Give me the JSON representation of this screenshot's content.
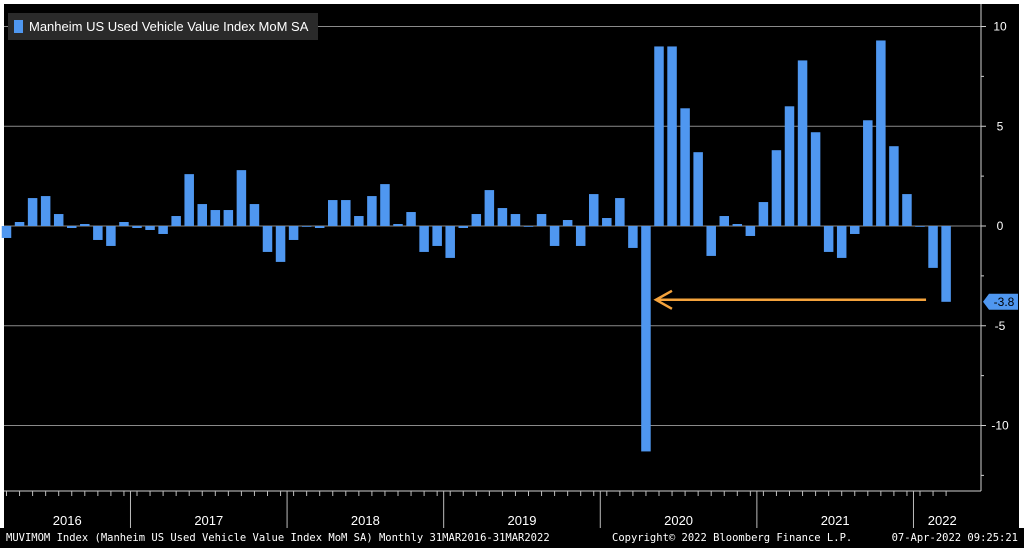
{
  "legend": {
    "label": "Manheim US Used Vehicle Value Index MoM SA",
    "color": "#4f97f0"
  },
  "footer": {
    "left": "MUVIMOM Index (Manheim US Used Vehicle Value Index MoM SA)  Monthly 31MAR2016-31MAR2022",
    "middle": "Copyright© 2022 Bloomberg Finance L.P.",
    "right": "07-Apr-2022 09:25:21"
  },
  "colors": {
    "background": "#000000",
    "bar": "#4f97f0",
    "grid": "#8a8a8a",
    "arrow": "#f5a33c",
    "text": "#ffffff"
  },
  "last_value_label": "-3.8",
  "chart_data": {
    "type": "bar",
    "title": "",
    "xlabel": "",
    "ylabel": "",
    "ylim": [
      -13,
      11
    ],
    "y_ticks": [
      10,
      5,
      0,
      -5,
      -10
    ],
    "y_tick_labels": [
      "10",
      "5",
      "0",
      "-5",
      "-10"
    ],
    "y_axis_position": "right",
    "grid": true,
    "legend_position": "top-left",
    "x_labels": [
      "2016",
      "2017",
      "2018",
      "2019",
      "2020",
      "2021",
      "2022"
    ],
    "x": [
      "2016-03",
      "2016-04",
      "2016-05",
      "2016-06",
      "2016-07",
      "2016-08",
      "2016-09",
      "2016-10",
      "2016-11",
      "2016-12",
      "2017-01",
      "2017-02",
      "2017-03",
      "2017-04",
      "2017-05",
      "2017-06",
      "2017-07",
      "2017-08",
      "2017-09",
      "2017-10",
      "2017-11",
      "2017-12",
      "2018-01",
      "2018-02",
      "2018-03",
      "2018-04",
      "2018-05",
      "2018-06",
      "2018-07",
      "2018-08",
      "2018-09",
      "2018-10",
      "2018-11",
      "2018-12",
      "2019-01",
      "2019-02",
      "2019-03",
      "2019-04",
      "2019-05",
      "2019-06",
      "2019-07",
      "2019-08",
      "2019-09",
      "2019-10",
      "2019-11",
      "2019-12",
      "2020-01",
      "2020-02",
      "2020-03",
      "2020-04",
      "2020-05",
      "2020-06",
      "2020-07",
      "2020-08",
      "2020-09",
      "2020-10",
      "2020-11",
      "2020-12",
      "2021-01",
      "2021-02",
      "2021-03",
      "2021-04",
      "2021-05",
      "2021-06",
      "2021-07",
      "2021-08",
      "2021-09",
      "2021-10",
      "2021-11",
      "2021-12",
      "2022-01",
      "2022-02",
      "2022-03"
    ],
    "series": [
      {
        "name": "Manheim US Used Vehicle Value Index MoM SA",
        "values": [
          -0.6,
          0.2,
          1.4,
          1.5,
          0.6,
          -0.1,
          0.1,
          -0.7,
          -1.0,
          0.2,
          -0.1,
          -0.2,
          -0.4,
          0.5,
          2.6,
          1.1,
          0.8,
          0.8,
          2.8,
          1.1,
          -1.3,
          -1.8,
          -0.7,
          0.0,
          -0.1,
          1.3,
          1.3,
          0.5,
          1.5,
          2.1,
          0.1,
          0.7,
          -1.3,
          -1.0,
          -1.6,
          -0.1,
          0.6,
          1.8,
          0.9,
          0.6,
          0.0,
          0.6,
          -1.0,
          0.3,
          -1.0,
          1.6,
          0.4,
          1.4,
          -1.1,
          -11.3,
          9.0,
          9.0,
          5.9,
          3.7,
          -1.5,
          0.5,
          0.1,
          -0.5,
          1.2,
          3.8,
          6.0,
          8.3,
          4.7,
          -1.3,
          -1.6,
          -0.4,
          5.3,
          9.3,
          4.0,
          1.6,
          0.0,
          -2.1,
          -3.8
        ]
      }
    ],
    "annotations": [
      {
        "type": "arrow",
        "from": "2022-02",
        "to": "2020-04",
        "y": -3.8,
        "label": "-3.8"
      }
    ]
  }
}
